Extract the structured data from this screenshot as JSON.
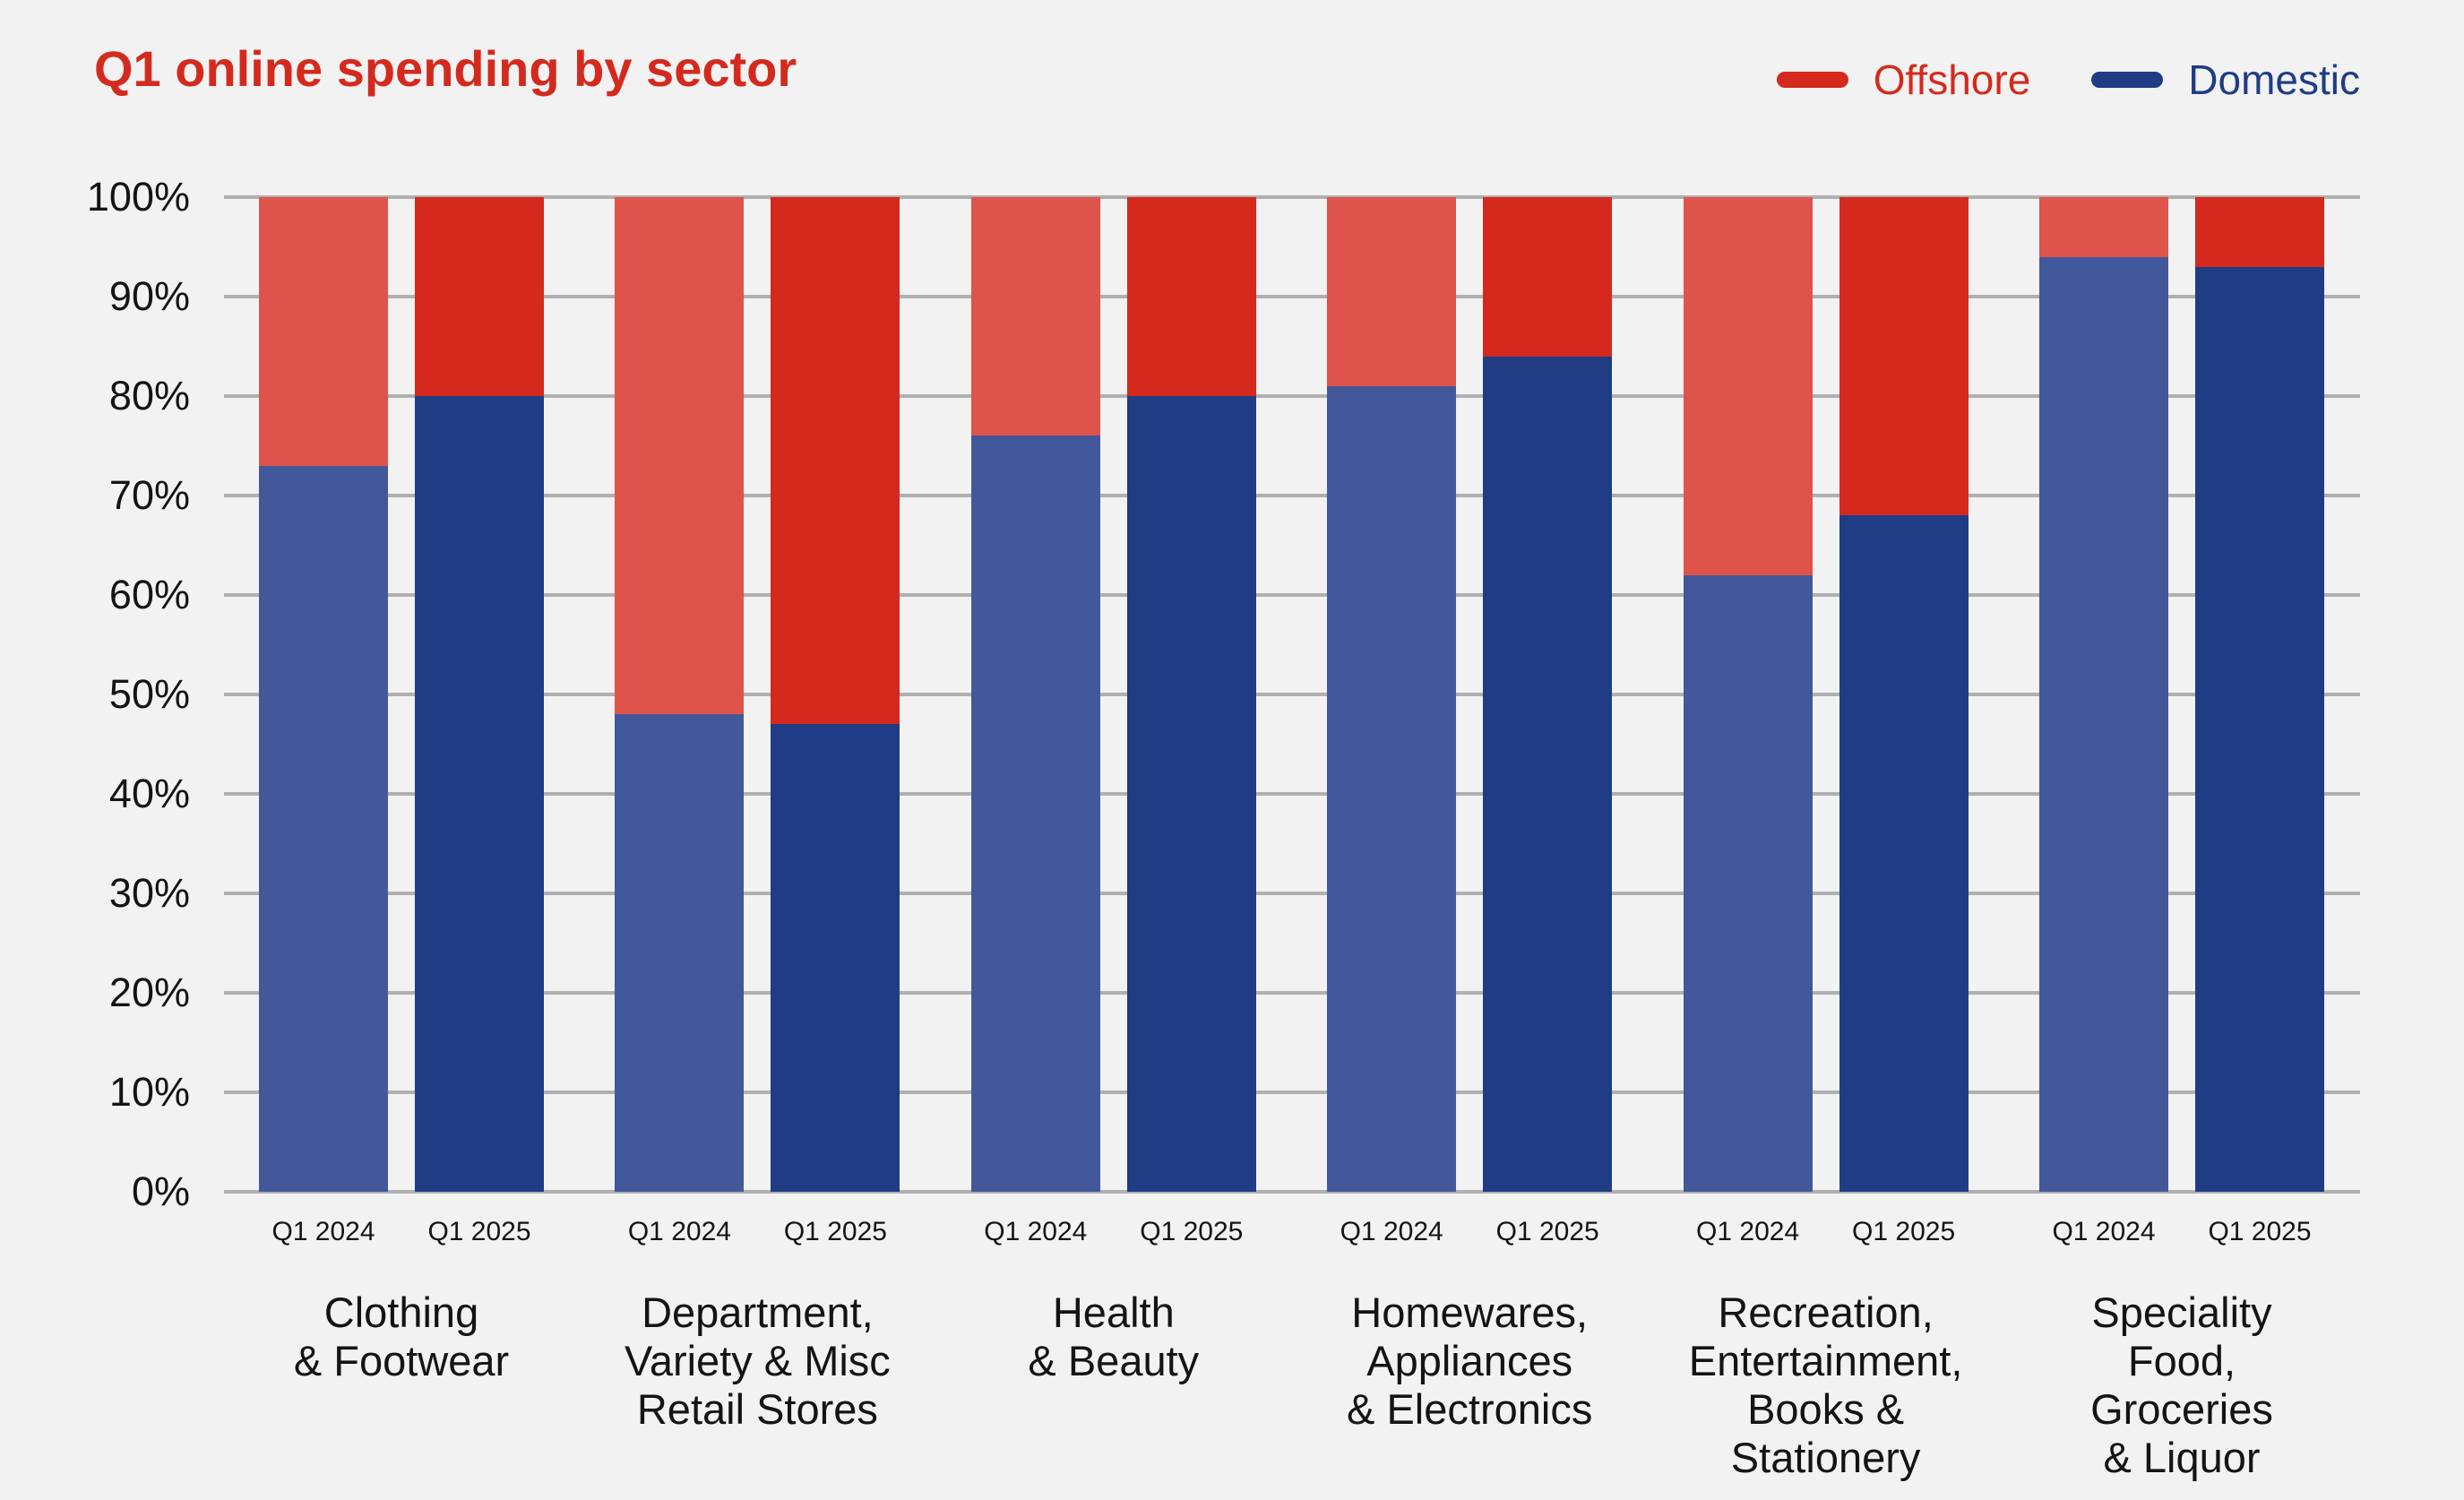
{
  "colors": {
    "background": "#f2f2f2",
    "gridline": "#b0b0b0",
    "axis_text": "#141414",
    "title": "#d42a1e"
  },
  "chart_data": {
    "type": "bar",
    "variant": "stacked-100-percent",
    "title": "Q1 online spending by sector",
    "unit": "%",
    "grid": true,
    "legend_position": "top-right",
    "legend": [
      {
        "label": "Offshore",
        "color": "#d42a1e"
      },
      {
        "label": "Domestic",
        "color": "#1f3c85"
      }
    ],
    "ylim": [
      0,
      100
    ],
    "yticks": [
      0,
      10,
      20,
      30,
      40,
      50,
      60,
      70,
      80,
      90,
      100
    ],
    "ytick_suffix": "%",
    "bar_labels": [
      "Q1 2024",
      "Q1 2025"
    ],
    "categories": [
      "Clothing & Footwear",
      "Department, Variety & Misc Retail Stores",
      "Health & Beauty",
      "Homewares, Appliances & Electronics",
      "Recreation, Entertainment, Books & Stationery",
      "Speciality Food, Groceries & Liquor"
    ],
    "category_label_lines": [
      [
        "Clothing",
        "& Footwear"
      ],
      [
        "Department,",
        "Variety & Misc",
        "Retail Stores"
      ],
      [
        "Health",
        "& Beauty"
      ],
      [
        "Homewares,",
        "Appliances",
        "& Electronics"
      ],
      [
        "Recreation,",
        "Entertainment,",
        "Books &",
        "Stationery"
      ],
      [
        "Speciality",
        "Food,",
        "Groceries",
        "& Liquor"
      ]
    ],
    "series": [
      {
        "name": "Domestic",
        "bar": "Q1 2024",
        "color": "#42589a",
        "values": [
          73,
          48,
          76,
          81,
          62,
          94
        ]
      },
      {
        "name": "Offshore",
        "bar": "Q1 2024",
        "color": "#de544b",
        "values": [
          27,
          52,
          24,
          19,
          38,
          6
        ]
      },
      {
        "name": "Domestic",
        "bar": "Q1 2025",
        "color": "#1f3c85",
        "values": [
          80,
          47,
          80,
          84,
          68,
          93
        ]
      },
      {
        "name": "Offshore",
        "bar": "Q1 2025",
        "color": "#d5291d",
        "values": [
          20,
          53,
          20,
          16,
          32,
          7
        ]
      }
    ]
  }
}
